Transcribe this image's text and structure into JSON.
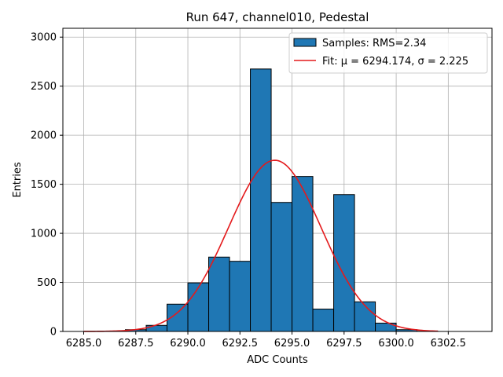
{
  "chart_data": {
    "type": "bar",
    "title": "Run 647, channel010, Pedestal",
    "xlabel": "ADC Counts",
    "ylabel": "Entries",
    "xlim": [
      6284.0,
      6304.6
    ],
    "ylim": [
      0,
      3090
    ],
    "xticks": [
      6285.0,
      6287.5,
      6290.0,
      6292.5,
      6295.0,
      6297.5,
      6300.0,
      6302.5
    ],
    "xtick_labels": [
      "6285.0",
      "6287.5",
      "6290.0",
      "6292.5",
      "6295.0",
      "6297.5",
      "6300.0",
      "6302.5"
    ],
    "yticks": [
      0,
      500,
      1000,
      1500,
      2000,
      2500,
      3000
    ],
    "ytick_labels": [
      "0",
      "500",
      "1000",
      "1500",
      "2000",
      "2500",
      "3000"
    ],
    "grid": true,
    "legend_position": "top-right",
    "bin_width": 1.0,
    "histogram": {
      "name": "Samples: RMS=2.34",
      "color": "#1f77b4",
      "edgecolor": "#000000",
      "bin_left_edges": [
        6286,
        6287,
        6288,
        6289,
        6290,
        6291,
        6292,
        6293,
        6294,
        6295,
        6296,
        6297,
        6298,
        6299,
        6300,
        6301
      ],
      "values": [
        2,
        18,
        62,
        278,
        495,
        758,
        715,
        2675,
        1315,
        1580,
        228,
        1395,
        302,
        85,
        18,
        2
      ]
    },
    "fit": {
      "name": "Fit: μ = 6294.174, σ = 2.225",
      "color": "#e41a1c",
      "mu": 6294.174,
      "sigma": 2.225,
      "amplitude": 1745,
      "x_range": [
        6285.0,
        6302.0
      ]
    }
  }
}
